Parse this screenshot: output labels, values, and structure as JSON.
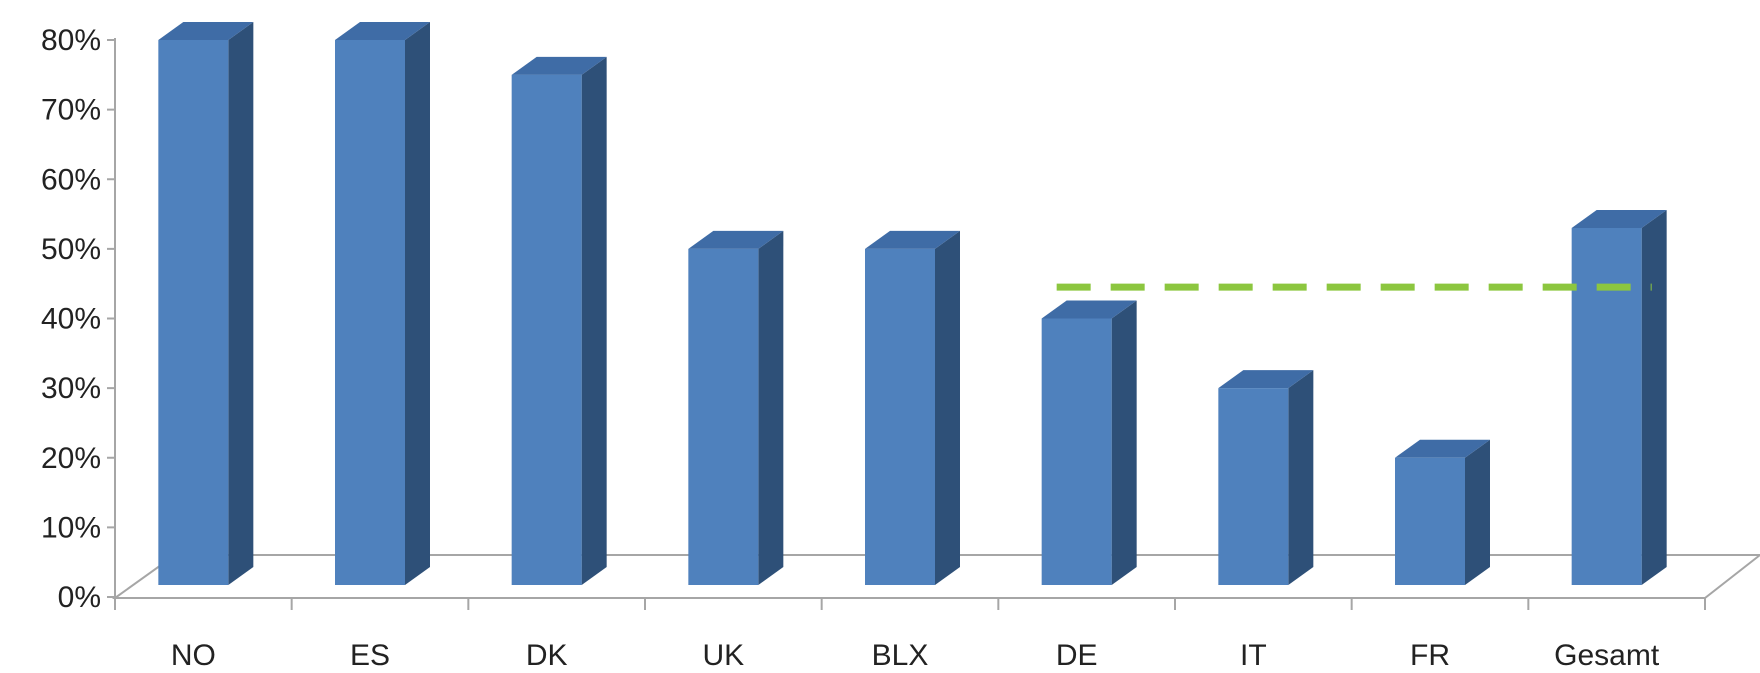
{
  "chart_data": {
    "type": "bar",
    "three_d": true,
    "categories": [
      "NO",
      "ES",
      "DK",
      "UK",
      "BLX",
      "DE",
      "IT",
      "FR",
      "Gesamt"
    ],
    "values": [
      80,
      80,
      75,
      50,
      50,
      40,
      30,
      20,
      53
    ],
    "y_ticks": [
      "0%",
      "10%",
      "20%",
      "30%",
      "40%",
      "50%",
      "60%",
      "70%",
      "80%"
    ],
    "ylim": [
      0,
      80
    ],
    "reference_line": {
      "value": 44.5,
      "from_category": "DE",
      "to_category": "Gesamt",
      "style": "dashed"
    },
    "colors": {
      "bar_front": "#4F81BD",
      "bar_side": "#2E5078",
      "bar_top": "#3F6CA6",
      "reference_line": "#8CC63F",
      "axis": "#A6A6A6"
    },
    "legend": "none",
    "grid": false
  }
}
